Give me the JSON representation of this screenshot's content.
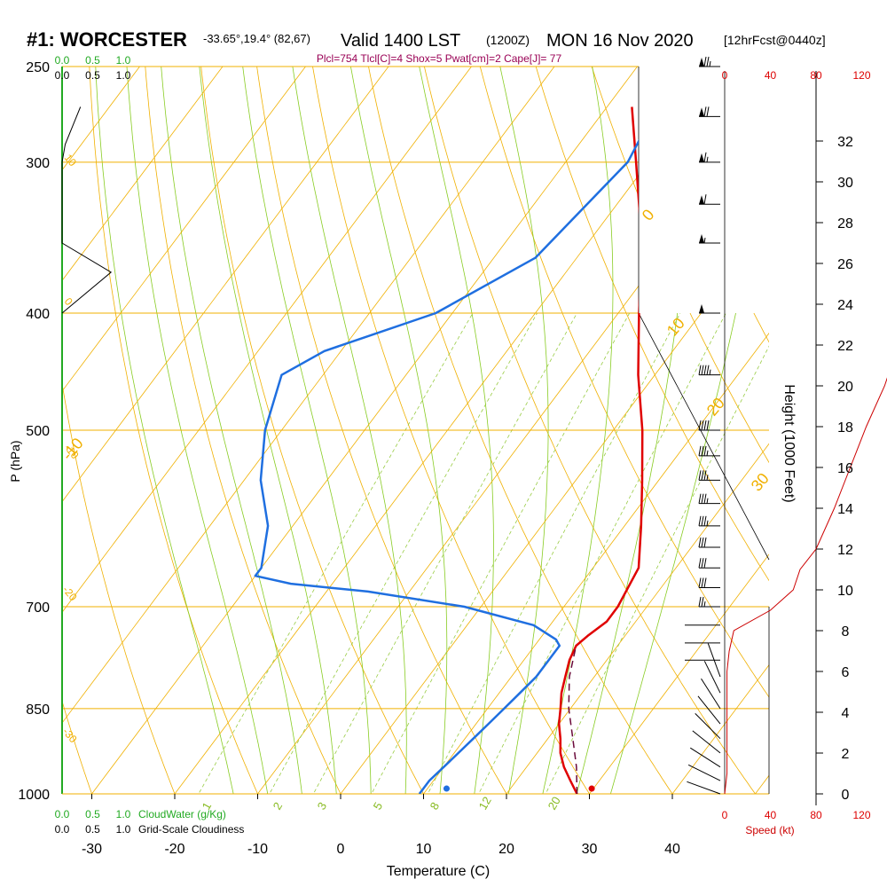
{
  "chart_data": {
    "type": "skew-t",
    "title_left": "#1: WORCESTER",
    "title_coords": "-33.65°,19.4° (82,67)",
    "title_valid": "Valid 1400 LST",
    "title_utc": "(1200Z)",
    "title_date": "MON 16 Nov 2020",
    "title_fcst": "[12hrFcst@0440z]",
    "indices": "Plcl=754 Tlcl[C]=4 Shox=5 Pwat[cm]=2 Cape[J]= 77",
    "xlabel": "Temperature (C)",
    "ylabel": "P (hPa)",
    "y2label": "Height (1000 Feet)",
    "speed_label": "Speed (kt)",
    "cloudwater_label": "CloudWater (g/Kg)",
    "cloudiness_label": "Grid-Scale Cloudiness",
    "x_ticks": [
      -30,
      -20,
      -10,
      0,
      10,
      20,
      30,
      40
    ],
    "p_ticks": [
      250,
      300,
      400,
      500,
      700,
      850,
      1000
    ],
    "height_ticks": [
      0,
      2,
      4,
      6,
      8,
      10,
      12,
      14,
      16,
      18,
      20,
      22,
      24,
      26,
      28,
      30,
      32
    ],
    "speed_ticks": [
      "0",
      "40",
      "80",
      "120"
    ],
    "scale_ticks_top_green": [
      "0.0",
      "0.5",
      "1.0"
    ],
    "scale_ticks_top_black": [
      "0.0",
      "0.5",
      "1.0"
    ],
    "scale_ticks_bottom_green": [
      "0.0",
      "0.5",
      "1.0"
    ],
    "scale_ticks_bottom_black": [
      "0.0",
      "0.5",
      "1.0"
    ],
    "isotherm_labels": [
      "-10",
      "0",
      "10",
      "20",
      "30"
    ],
    "mixing_ratio_labels": [
      "1",
      "2",
      "3",
      "5",
      "8",
      "12",
      "20"
    ],
    "temperature": {
      "p": [
        1000,
        975,
        950,
        925,
        900,
        875,
        850,
        825,
        800,
        775,
        754,
        740,
        720,
        700,
        650,
        600,
        550,
        500,
        450,
        400,
        350,
        300,
        270
      ],
      "t": [
        28.5,
        26.5,
        24.5,
        22.8,
        21.5,
        20.0,
        18.8,
        17.5,
        16.5,
        15.5,
        15.0,
        15.5,
        16.5,
        16.5,
        15.5,
        12.0,
        8.0,
        3.5,
        -2.0,
        -7.5,
        -13.5,
        -21.5,
        -27.0
      ]
    },
    "dewpoint": {
      "p": [
        1000,
        975,
        950,
        925,
        900,
        875,
        850,
        825,
        800,
        775,
        754,
        745,
        725,
        700,
        680,
        670,
        660,
        650,
        600,
        550,
        500,
        450,
        430,
        400,
        360,
        300,
        270
      ],
      "td": [
        9.5,
        9.5,
        10.0,
        10.5,
        11.0,
        11.5,
        12.0,
        12.5,
        13.0,
        13.0,
        13.0,
        12.0,
        8.0,
        -2.0,
        -15.0,
        -25.0,
        -30.0,
        -30.0,
        -33.0,
        -38.0,
        -42.0,
        -45.0,
        -42.0,
        -32.0,
        -25.0,
        -22.5,
        -24.0
      ]
    },
    "parcel": {
      "p": [
        1000,
        950,
        900,
        850,
        800,
        754
      ],
      "t": [
        28.5,
        26.0,
        23.0,
        19.8,
        17.0,
        15.0
      ]
    },
    "surface_temp_marker": {
      "p": 990,
      "t": 29.8
    },
    "surface_dew_marker": {
      "p": 990,
      "t": 12.3
    },
    "speed_profile": {
      "height_kft": [
        0,
        1,
        2,
        3,
        4,
        5,
        6,
        7,
        8,
        9,
        10,
        11,
        12,
        14,
        16,
        18,
        20,
        22,
        24,
        26,
        28,
        30,
        32
      ],
      "speed_kt": [
        0,
        1,
        1,
        1,
        1,
        1,
        1,
        2,
        4,
        20,
        30,
        33,
        40,
        48,
        55,
        62,
        70,
        76,
        82,
        88,
        92,
        96,
        102
      ]
    },
    "wind_barbs": {
      "p": [
        1000,
        975,
        950,
        925,
        900,
        875,
        850,
        825,
        800,
        775,
        750,
        725,
        700,
        675,
        650,
        625,
        600,
        575,
        550,
        525,
        500,
        450,
        400,
        350,
        325,
        300,
        275,
        250
      ],
      "speed_kt": [
        5,
        5,
        5,
        10,
        10,
        10,
        15,
        15,
        20,
        20,
        20,
        25,
        25,
        30,
        30,
        30,
        35,
        35,
        35,
        35,
        40,
        45,
        50,
        55,
        60,
        65,
        70,
        75
      ]
    },
    "cloudiness_profile": {
      "p": [
        270,
        290,
        300,
        320,
        350,
        370,
        400
      ],
      "value": [
        0.3,
        0.05,
        0.0,
        0.0,
        0.0,
        0.8,
        0.0
      ]
    },
    "colors": {
      "temperature": "#e00000",
      "dewpoint": "#1f6fe0",
      "parcel": "#6a0a3a",
      "isotherm": "#f0b000",
      "dry_adiabat": "#f0b000",
      "moist_adiabat": "#88cc22",
      "mixing_ratio": "#99cc44",
      "cloudwater": "#22aa22",
      "speed": "#cc0000",
      "indices": "#990055"
    }
  }
}
